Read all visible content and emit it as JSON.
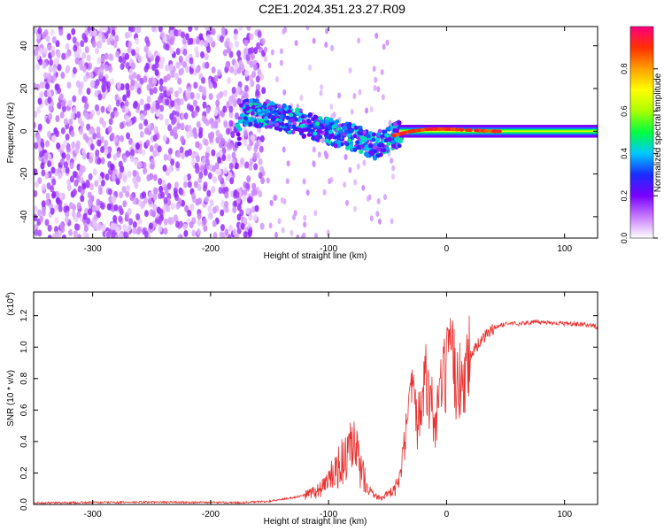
{
  "title": "C2E1.2024.351.23.27.R09",
  "colors": {
    "signal": "#e8302e",
    "background": "#ffffff",
    "axis": "#000000",
    "colormap": [
      "#ffffff",
      "#c77dff",
      "#7a00ff",
      "#1a2cff",
      "#00c8ff",
      "#00ff40",
      "#aaff00",
      "#ffff00",
      "#ffa000",
      "#ff3000",
      "#ff0080"
    ]
  },
  "chart_data": [
    {
      "type": "heatmap",
      "xlabel": "Height of straight line (km)",
      "ylabel": "Frequency (Hz)",
      "xlim": [
        -350,
        128
      ],
      "ylim": [
        -50,
        49
      ],
      "xticks": [
        -300,
        -200,
        -100,
        0,
        100
      ],
      "yticks": [
        -40,
        -20,
        0,
        20,
        40
      ],
      "grid": false,
      "ridge": {
        "description_x": [
          -175,
          -150,
          -125,
          -100,
          -80,
          -60,
          -45,
          -30,
          -15,
          0,
          40,
          128
        ],
        "frequency_center_hz": [
          9,
          8,
          4,
          0,
          -3,
          -7,
          -2,
          0,
          1,
          1,
          0,
          0
        ]
      },
      "colorbar": {
        "label": "Normalized spectral amplitude",
        "range": [
          0.0,
          1.0
        ],
        "ticks": [
          "0.0",
          "0.2",
          "0.4",
          "0.6",
          "0.8"
        ],
        "position": "right"
      }
    },
    {
      "type": "line",
      "xlabel": "Height of straight line (km)",
      "ylabel": "SNR (10 * v/v)",
      "y_multiplier_label": "(x10",
      "y_multiplier_exp": "4",
      "xlim": [
        -350,
        128
      ],
      "ylim": [
        0,
        1.35
      ],
      "xticks": [
        -300,
        -200,
        -100,
        0,
        100
      ],
      "yticks": [
        "0.0",
        "0.2",
        "0.4",
        "0.6",
        "0.8",
        "1.0",
        "1.2"
      ],
      "grid": false,
      "series": [
        {
          "x": [
            -350,
            -250,
            -175,
            -150,
            -125,
            -110,
            -100,
            -95,
            -85,
            -78,
            -72,
            -65,
            -60,
            -55,
            -50,
            -45,
            -40,
            -35,
            -30,
            -25,
            -20,
            -15,
            -12,
            -10,
            -5,
            0,
            5,
            10,
            15,
            20,
            25,
            30,
            40,
            50,
            60,
            80,
            100,
            120,
            128
          ],
          "y": [
            0.01,
            0.015,
            0.012,
            0.02,
            0.05,
            0.08,
            0.15,
            0.2,
            0.3,
            0.35,
            0.2,
            0.1,
            0.05,
            0.05,
            0.06,
            0.08,
            0.15,
            0.4,
            0.7,
            0.5,
            0.85,
            0.7,
            0.6,
            0.5,
            0.7,
            0.85,
            0.9,
            0.75,
            0.85,
            0.95,
            1.0,
            1.05,
            1.12,
            1.15,
            1.15,
            1.16,
            1.15,
            1.14,
            1.13
          ]
        }
      ]
    }
  ]
}
